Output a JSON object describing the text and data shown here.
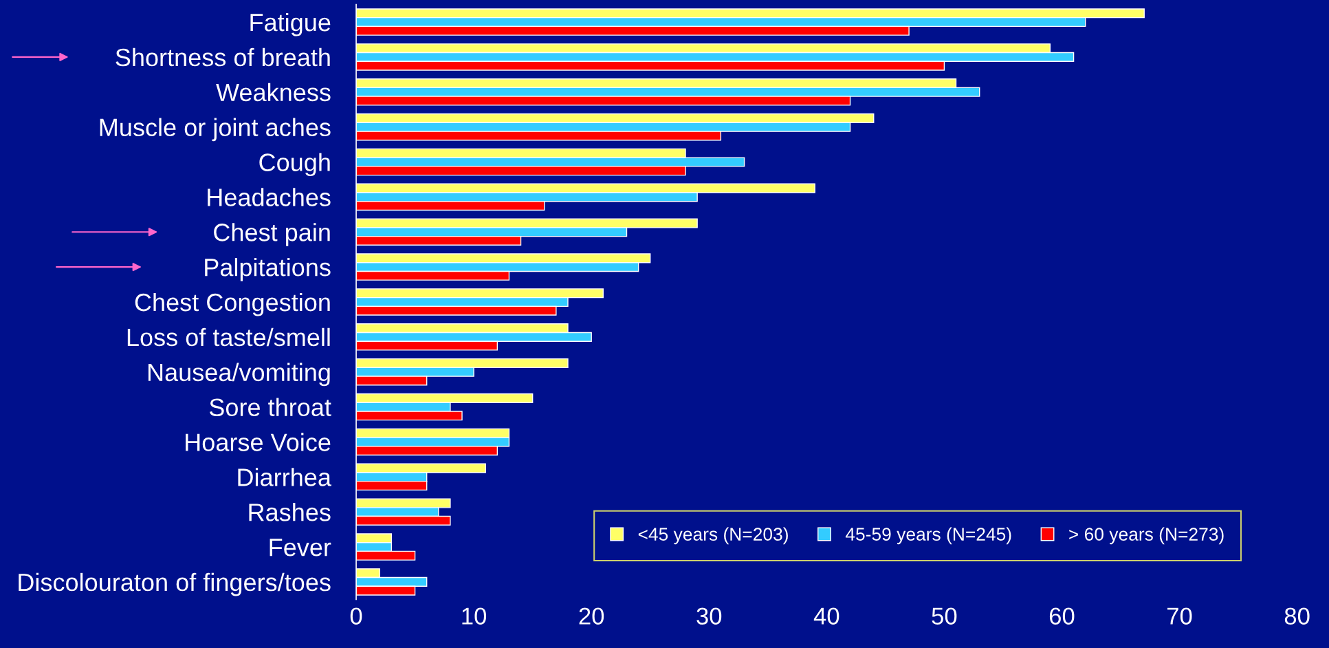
{
  "chart_data": {
    "type": "bar",
    "orientation": "horizontal",
    "categories": [
      "Fatigue",
      "Shortness of breath",
      "Weakness",
      "Muscle or joint aches",
      "Cough",
      "Headaches",
      "Chest pain",
      "Palpitations",
      "Chest Congestion",
      "Loss of taste/smell",
      "Nausea/vomiting",
      "Sore throat",
      "Hoarse Voice",
      "Diarrhea",
      "Rashes",
      "Fever",
      "Discolouraton of fingers/toes"
    ],
    "series": [
      {
        "name": "<45 years (N=203)",
        "color": "#ffff66",
        "values": [
          67,
          59,
          51,
          44,
          28,
          39,
          29,
          25,
          21,
          18,
          18,
          15,
          13,
          11,
          8,
          3,
          2
        ]
      },
      {
        "name": "45-59 years (N=245)",
        "color": "#33ccff",
        "values": [
          62,
          61,
          53,
          42,
          33,
          29,
          23,
          24,
          18,
          20,
          10,
          8,
          13,
          6,
          7,
          3,
          6
        ]
      },
      {
        "name": "> 60 years (N=273)",
        "color": "#ff0000",
        "values": [
          47,
          50,
          42,
          31,
          28,
          16,
          14,
          13,
          17,
          12,
          6,
          9,
          12,
          6,
          8,
          5,
          5
        ]
      }
    ],
    "xlim": [
      0,
      80
    ],
    "xticks": [
      0,
      10,
      20,
      30,
      40,
      50,
      60,
      70,
      80
    ],
    "grid": false,
    "legend": "bottom right"
  }
}
